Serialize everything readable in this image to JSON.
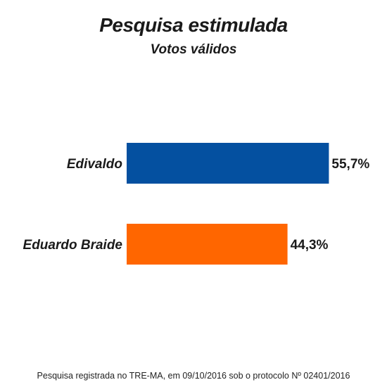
{
  "chart_data": {
    "type": "bar",
    "orientation": "horizontal",
    "title": "Pesquisa estimulada",
    "subtitle": "Votos válidos",
    "categories": [
      "Edivaldo",
      "Eduardo Braide"
    ],
    "values": [
      55.7,
      44.3
    ],
    "value_labels": [
      "55,7%",
      "44,3%"
    ],
    "colors": [
      "#0450a0",
      "#ff6600"
    ],
    "xlim": [
      0,
      60
    ],
    "grid": false
  },
  "footer": "Pesquisa registrada no TRE-MA, em 09/10/2016 sob o protocolo  Nº 02401/2016"
}
